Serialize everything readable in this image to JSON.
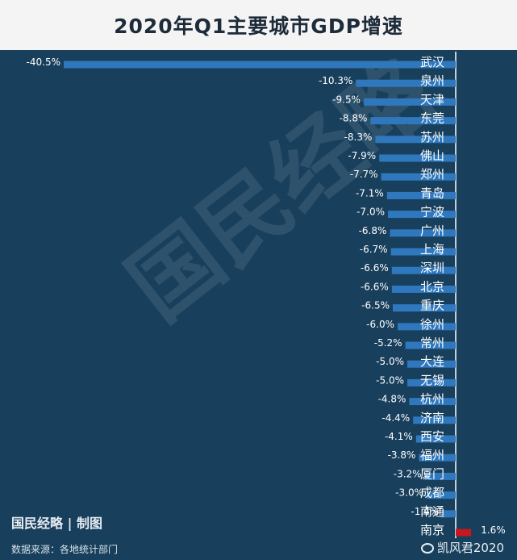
{
  "title": "2020年Q1主要城市GDP增速",
  "watermark": "国民经略",
  "brand": "国民经略 | 制图",
  "source": "数据来源：各地统计部门",
  "credit": "凯风君2020",
  "colors": {
    "background": "#183f5c",
    "negative_bar": "#2f78bd",
    "positive_bar": "#c8171e",
    "text": "#ffffff"
  },
  "chart_data": {
    "type": "bar",
    "orientation": "horizontal",
    "categories": [
      "武汉",
      "泉州",
      "天津",
      "东莞",
      "苏州",
      "佛山",
      "郑州",
      "青岛",
      "宁波",
      "广州",
      "上海",
      "深圳",
      "北京",
      "重庆",
      "徐州",
      "常州",
      "大连",
      "无锡",
      "杭州",
      "济南",
      "西安",
      "福州",
      "厦门",
      "成都",
      "南通",
      "南京"
    ],
    "values": [
      -40.5,
      -10.3,
      -9.5,
      -8.8,
      -8.3,
      -7.9,
      -7.7,
      -7.1,
      -7.0,
      -6.8,
      -6.7,
      -6.6,
      -6.6,
      -6.5,
      -6.0,
      -5.2,
      -5.0,
      -5.0,
      -4.8,
      -4.4,
      -4.1,
      -3.8,
      -3.2,
      -3.0,
      -1.4,
      1.6
    ],
    "value_labels": [
      "-40.5%",
      "-10.3%",
      "-9.5%",
      "-8.8%",
      "-8.3%",
      "-7.9%",
      "-7.7%",
      "-7.1%",
      "-7.0%",
      "-6.8%",
      "-6.7%",
      "-6.6%",
      "-6.6%",
      "-6.5%",
      "-6.0%",
      "-5.2%",
      "-5.0%",
      "-5.0%",
      "-4.8%",
      "-4.4%",
      "-4.1%",
      "-3.8%",
      "-3.2%",
      "-3.0%",
      "-1.4%",
      "1.6%"
    ],
    "unit": "%"
  }
}
